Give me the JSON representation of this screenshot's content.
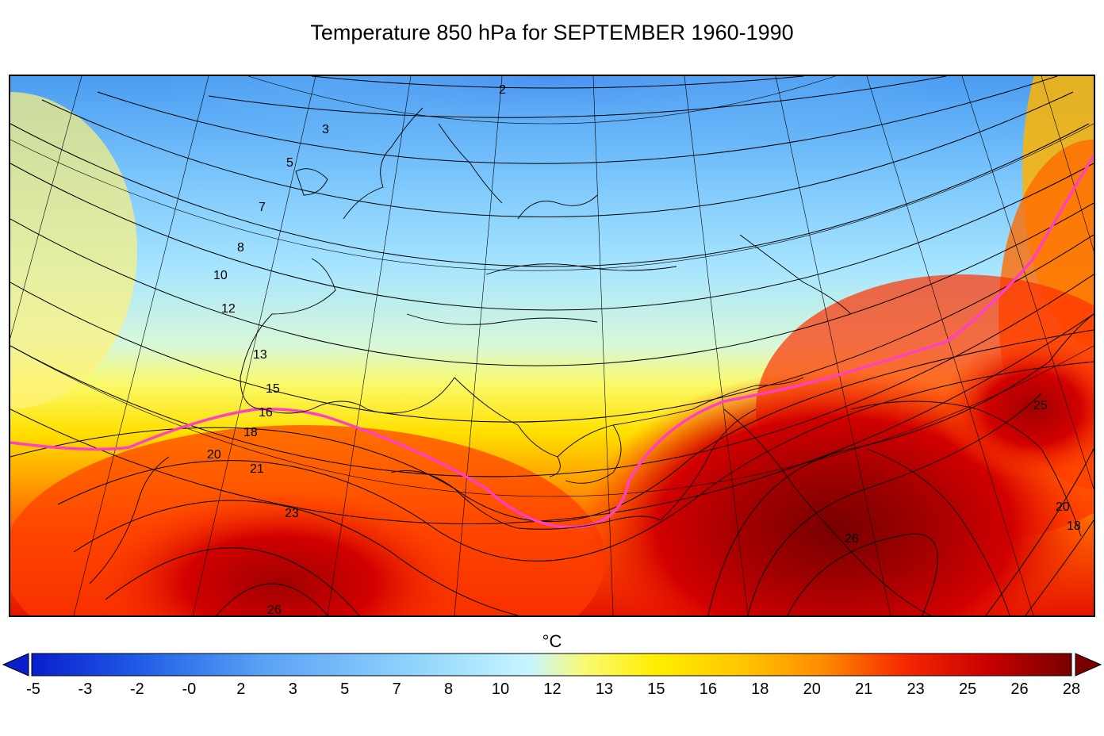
{
  "chart_data": {
    "type": "heatmap",
    "title": "Temperature 850 hPa for SEPTEMBER 1960-1990",
    "colorbar": {
      "unit": "°C",
      "ticks": [
        "-5",
        "-3",
        "-2",
        "-0",
        "2",
        "3",
        "5",
        "7",
        "8",
        "10",
        "12",
        "13",
        "15",
        "16",
        "18",
        "20",
        "21",
        "23",
        "25",
        "26",
        "28"
      ],
      "colors": [
        "#0a1ecc",
        "#1e5ae6",
        "#3c82f0",
        "#5aa0f5",
        "#78bcfa",
        "#8cd2fc",
        "#a0e4fe",
        "#c8f6ff",
        "#fafa78",
        "#ffee00",
        "#ffd200",
        "#ffa000",
        "#ff6e00",
        "#f52800",
        "#d20000",
        "#a00000",
        "#780000"
      ],
      "extend": "both"
    },
    "contour_labels": [
      {
        "value": "2"
      },
      {
        "value": "3"
      },
      {
        "value": "5"
      },
      {
        "value": "7"
      },
      {
        "value": "8"
      },
      {
        "value": "10"
      },
      {
        "value": "12"
      },
      {
        "value": "13"
      },
      {
        "value": "15"
      },
      {
        "value": "16"
      },
      {
        "value": "18"
      },
      {
        "value": "20"
      },
      {
        "value": "21"
      },
      {
        "value": "23"
      },
      {
        "value": "26"
      },
      {
        "value": "25"
      },
      {
        "value": "26"
      },
      {
        "value": "20"
      },
      {
        "value": "18"
      }
    ],
    "highlight_isotherm": {
      "value": 16,
      "color": "#ff40c0"
    }
  }
}
